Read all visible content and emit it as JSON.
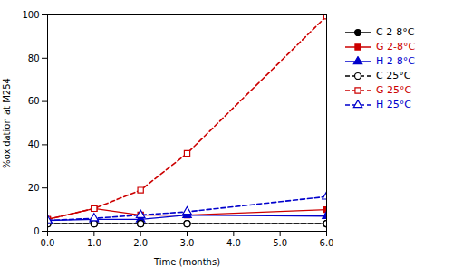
{
  "chart_data": {
    "type": "line",
    "xlabel": "Time (months)",
    "ylabel": "%oxidation at M254",
    "x": [
      0,
      1,
      2,
      3,
      6
    ],
    "xlim": [
      0,
      6
    ],
    "ylim": [
      0,
      100
    ],
    "xticks": [
      0,
      1,
      2,
      3,
      4,
      5,
      6
    ],
    "yticks": [
      0,
      20,
      40,
      60,
      80,
      100
    ],
    "grid": false,
    "legend": "right",
    "series": [
      {
        "name": "C 2-8°C",
        "color": "#000000",
        "values": [
          3.5,
          3.5,
          3.5,
          3.5,
          3.5
        ],
        "marker": "circle",
        "line_style": "solid"
      },
      {
        "name": "G 2-8°C",
        "color": "#cc0000",
        "values": [
          5.5,
          10.5,
          7.5,
          7.5,
          10.0
        ],
        "marker": "square",
        "line_style": "solid"
      },
      {
        "name": "H 2-8°C",
        "color": "#0000cc",
        "values": [
          5.0,
          5.5,
          5.5,
          7.5,
          7.0
        ],
        "marker": "triangle",
        "line_style": "solid"
      },
      {
        "name": "C 25°C",
        "color": "#000000",
        "values": [
          3.5,
          3.5,
          3.5,
          3.5,
          3.5
        ],
        "marker": "circle-open",
        "line_style": "dashed"
      },
      {
        "name": "G 25°C",
        "color": "#cc0000",
        "values": [
          5.5,
          10.5,
          19.0,
          36.0,
          99.5
        ],
        "marker": "square-open",
        "line_style": "dashed"
      },
      {
        "name": "H 25°C",
        "color": "#0000cc",
        "values": [
          5.0,
          6.0,
          7.5,
          9.0,
          16.0
        ],
        "marker": "triangle-open",
        "line_style": "dashed"
      }
    ]
  }
}
